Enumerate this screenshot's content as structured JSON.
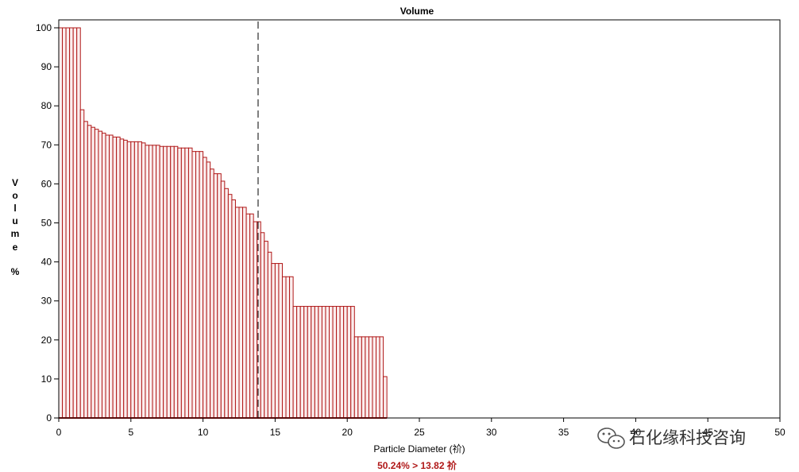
{
  "chart_data": {
    "type": "bar",
    "title": "Volume",
    "xlabel": "Particle Diameter (祄)",
    "ylabel_letters": [
      "V",
      "o",
      "l",
      "u",
      "m",
      "e"
    ],
    "ylabel_unit": "%",
    "xlim": [
      0,
      50
    ],
    "ylim": [
      0,
      100
    ],
    "x_ticks": [
      "0",
      "5",
      "10",
      "15",
      "20",
      "25",
      "30",
      "35",
      "40",
      "45",
      "50"
    ],
    "y_ticks": [
      "0",
      "10",
      "20",
      "30",
      "40",
      "50",
      "60",
      "70",
      "80",
      "90",
      "100"
    ],
    "bin_width": 0.25,
    "marker_x": 13.82,
    "annotation": "50.24% > 13.82 祄",
    "bar_color": "#b01818",
    "bar_fill": "#fbeeee",
    "steps": [
      {
        "x_start": 0.0,
        "x_end": 1.5,
        "value": 100
      },
      {
        "x_start": 1.5,
        "x_end": 1.75,
        "value": 79
      },
      {
        "x_start": 1.75,
        "x_end": 2.0,
        "value": 76
      },
      {
        "x_start": 2.0,
        "x_end": 2.25,
        "value": 75
      },
      {
        "x_start": 2.25,
        "x_end": 2.5,
        "value": 74.5
      },
      {
        "x_start": 2.5,
        "x_end": 2.75,
        "value": 74
      },
      {
        "x_start": 2.75,
        "x_end": 3.0,
        "value": 73.5
      },
      {
        "x_start": 3.0,
        "x_end": 3.25,
        "value": 73
      },
      {
        "x_start": 3.25,
        "x_end": 3.75,
        "value": 72.5
      },
      {
        "x_start": 3.75,
        "x_end": 4.25,
        "value": 72
      },
      {
        "x_start": 4.25,
        "x_end": 4.5,
        "value": 71.5
      },
      {
        "x_start": 4.5,
        "x_end": 4.75,
        "value": 71.2
      },
      {
        "x_start": 4.75,
        "x_end": 5.75,
        "value": 70.8
      },
      {
        "x_start": 5.75,
        "x_end": 6.0,
        "value": 70.5
      },
      {
        "x_start": 6.0,
        "x_end": 7.0,
        "value": 69.9
      },
      {
        "x_start": 7.0,
        "x_end": 8.25,
        "value": 69.6
      },
      {
        "x_start": 8.25,
        "x_end": 9.25,
        "value": 69.2
      },
      {
        "x_start": 9.25,
        "x_end": 10.0,
        "value": 68.3
      },
      {
        "x_start": 10.0,
        "x_end": 10.25,
        "value": 66.8
      },
      {
        "x_start": 10.25,
        "x_end": 10.5,
        "value": 65.6
      },
      {
        "x_start": 10.5,
        "x_end": 10.75,
        "value": 63.8
      },
      {
        "x_start": 10.75,
        "x_end": 11.25,
        "value": 62.6
      },
      {
        "x_start": 11.25,
        "x_end": 11.5,
        "value": 60.7
      },
      {
        "x_start": 11.5,
        "x_end": 11.75,
        "value": 58.8
      },
      {
        "x_start": 11.75,
        "x_end": 12.0,
        "value": 57.3
      },
      {
        "x_start": 12.0,
        "x_end": 12.25,
        "value": 55.9
      },
      {
        "x_start": 12.25,
        "x_end": 12.5,
        "value": 54
      },
      {
        "x_start": 12.5,
        "x_end": 13.0,
        "value": 54
      },
      {
        "x_start": 13.0,
        "x_end": 13.25,
        "value": 52.3
      },
      {
        "x_start": 13.25,
        "x_end": 13.5,
        "value": 52.3
      },
      {
        "x_start": 13.5,
        "x_end": 14.0,
        "value": 50.3
      },
      {
        "x_start": 14.0,
        "x_end": 14.25,
        "value": 47.5
      },
      {
        "x_start": 14.25,
        "x_end": 14.5,
        "value": 45.3
      },
      {
        "x_start": 14.5,
        "x_end": 14.75,
        "value": 42.5
      },
      {
        "x_start": 14.75,
        "x_end": 15.5,
        "value": 39.6
      },
      {
        "x_start": 15.5,
        "x_end": 16.25,
        "value": 36.2
      },
      {
        "x_start": 16.25,
        "x_end": 20.5,
        "value": 28.6
      },
      {
        "x_start": 20.5,
        "x_end": 22.5,
        "value": 20.8
      },
      {
        "x_start": 22.5,
        "x_end": 22.75,
        "value": 10.6
      }
    ]
  },
  "watermark": {
    "icon": "wechat-icon",
    "text": "石化缘科技咨询"
  }
}
